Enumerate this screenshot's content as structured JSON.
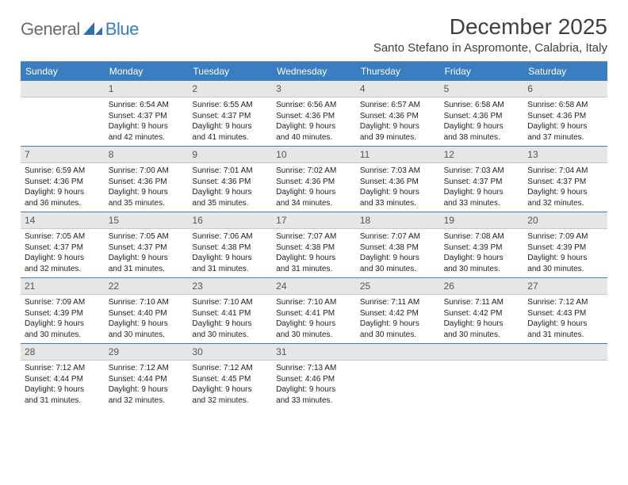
{
  "logo": {
    "general": "General",
    "blue": "Blue"
  },
  "header": {
    "title": "December 2025",
    "location": "Santo Stefano in Aspromonte, Calabria, Italy"
  },
  "colors": {
    "header_bg": "#3a7ec1",
    "header_text": "#ffffff",
    "daynum_bg": "#e6e6e6",
    "text": "#222222",
    "logo_gray": "#6b6b6b",
    "logo_blue": "#3a7ec1"
  },
  "daynames": [
    "Sunday",
    "Monday",
    "Tuesday",
    "Wednesday",
    "Thursday",
    "Friday",
    "Saturday"
  ],
  "weeks": [
    [
      {
        "num": "",
        "lines": []
      },
      {
        "num": "1",
        "lines": [
          "Sunrise: 6:54 AM",
          "Sunset: 4:37 PM",
          "Daylight: 9 hours",
          "and 42 minutes."
        ]
      },
      {
        "num": "2",
        "lines": [
          "Sunrise: 6:55 AM",
          "Sunset: 4:37 PM",
          "Daylight: 9 hours",
          "and 41 minutes."
        ]
      },
      {
        "num": "3",
        "lines": [
          "Sunrise: 6:56 AM",
          "Sunset: 4:36 PM",
          "Daylight: 9 hours",
          "and 40 minutes."
        ]
      },
      {
        "num": "4",
        "lines": [
          "Sunrise: 6:57 AM",
          "Sunset: 4:36 PM",
          "Daylight: 9 hours",
          "and 39 minutes."
        ]
      },
      {
        "num": "5",
        "lines": [
          "Sunrise: 6:58 AM",
          "Sunset: 4:36 PM",
          "Daylight: 9 hours",
          "and 38 minutes."
        ]
      },
      {
        "num": "6",
        "lines": [
          "Sunrise: 6:58 AM",
          "Sunset: 4:36 PM",
          "Daylight: 9 hours",
          "and 37 minutes."
        ]
      }
    ],
    [
      {
        "num": "7",
        "lines": [
          "Sunrise: 6:59 AM",
          "Sunset: 4:36 PM",
          "Daylight: 9 hours",
          "and 36 minutes."
        ]
      },
      {
        "num": "8",
        "lines": [
          "Sunrise: 7:00 AM",
          "Sunset: 4:36 PM",
          "Daylight: 9 hours",
          "and 35 minutes."
        ]
      },
      {
        "num": "9",
        "lines": [
          "Sunrise: 7:01 AM",
          "Sunset: 4:36 PM",
          "Daylight: 9 hours",
          "and 35 minutes."
        ]
      },
      {
        "num": "10",
        "lines": [
          "Sunrise: 7:02 AM",
          "Sunset: 4:36 PM",
          "Daylight: 9 hours",
          "and 34 minutes."
        ]
      },
      {
        "num": "11",
        "lines": [
          "Sunrise: 7:03 AM",
          "Sunset: 4:36 PM",
          "Daylight: 9 hours",
          "and 33 minutes."
        ]
      },
      {
        "num": "12",
        "lines": [
          "Sunrise: 7:03 AM",
          "Sunset: 4:37 PM",
          "Daylight: 9 hours",
          "and 33 minutes."
        ]
      },
      {
        "num": "13",
        "lines": [
          "Sunrise: 7:04 AM",
          "Sunset: 4:37 PM",
          "Daylight: 9 hours",
          "and 32 minutes."
        ]
      }
    ],
    [
      {
        "num": "14",
        "lines": [
          "Sunrise: 7:05 AM",
          "Sunset: 4:37 PM",
          "Daylight: 9 hours",
          "and 32 minutes."
        ]
      },
      {
        "num": "15",
        "lines": [
          "Sunrise: 7:05 AM",
          "Sunset: 4:37 PM",
          "Daylight: 9 hours",
          "and 31 minutes."
        ]
      },
      {
        "num": "16",
        "lines": [
          "Sunrise: 7:06 AM",
          "Sunset: 4:38 PM",
          "Daylight: 9 hours",
          "and 31 minutes."
        ]
      },
      {
        "num": "17",
        "lines": [
          "Sunrise: 7:07 AM",
          "Sunset: 4:38 PM",
          "Daylight: 9 hours",
          "and 31 minutes."
        ]
      },
      {
        "num": "18",
        "lines": [
          "Sunrise: 7:07 AM",
          "Sunset: 4:38 PM",
          "Daylight: 9 hours",
          "and 30 minutes."
        ]
      },
      {
        "num": "19",
        "lines": [
          "Sunrise: 7:08 AM",
          "Sunset: 4:39 PM",
          "Daylight: 9 hours",
          "and 30 minutes."
        ]
      },
      {
        "num": "20",
        "lines": [
          "Sunrise: 7:09 AM",
          "Sunset: 4:39 PM",
          "Daylight: 9 hours",
          "and 30 minutes."
        ]
      }
    ],
    [
      {
        "num": "21",
        "lines": [
          "Sunrise: 7:09 AM",
          "Sunset: 4:39 PM",
          "Daylight: 9 hours",
          "and 30 minutes."
        ]
      },
      {
        "num": "22",
        "lines": [
          "Sunrise: 7:10 AM",
          "Sunset: 4:40 PM",
          "Daylight: 9 hours",
          "and 30 minutes."
        ]
      },
      {
        "num": "23",
        "lines": [
          "Sunrise: 7:10 AM",
          "Sunset: 4:41 PM",
          "Daylight: 9 hours",
          "and 30 minutes."
        ]
      },
      {
        "num": "24",
        "lines": [
          "Sunrise: 7:10 AM",
          "Sunset: 4:41 PM",
          "Daylight: 9 hours",
          "and 30 minutes."
        ]
      },
      {
        "num": "25",
        "lines": [
          "Sunrise: 7:11 AM",
          "Sunset: 4:42 PM",
          "Daylight: 9 hours",
          "and 30 minutes."
        ]
      },
      {
        "num": "26",
        "lines": [
          "Sunrise: 7:11 AM",
          "Sunset: 4:42 PM",
          "Daylight: 9 hours",
          "and 30 minutes."
        ]
      },
      {
        "num": "27",
        "lines": [
          "Sunrise: 7:12 AM",
          "Sunset: 4:43 PM",
          "Daylight: 9 hours",
          "and 31 minutes."
        ]
      }
    ],
    [
      {
        "num": "28",
        "lines": [
          "Sunrise: 7:12 AM",
          "Sunset: 4:44 PM",
          "Daylight: 9 hours",
          "and 31 minutes."
        ]
      },
      {
        "num": "29",
        "lines": [
          "Sunrise: 7:12 AM",
          "Sunset: 4:44 PM",
          "Daylight: 9 hours",
          "and 32 minutes."
        ]
      },
      {
        "num": "30",
        "lines": [
          "Sunrise: 7:12 AM",
          "Sunset: 4:45 PM",
          "Daylight: 9 hours",
          "and 32 minutes."
        ]
      },
      {
        "num": "31",
        "lines": [
          "Sunrise: 7:13 AM",
          "Sunset: 4:46 PM",
          "Daylight: 9 hours",
          "and 33 minutes."
        ]
      },
      {
        "num": "",
        "lines": []
      },
      {
        "num": "",
        "lines": []
      },
      {
        "num": "",
        "lines": []
      }
    ]
  ]
}
